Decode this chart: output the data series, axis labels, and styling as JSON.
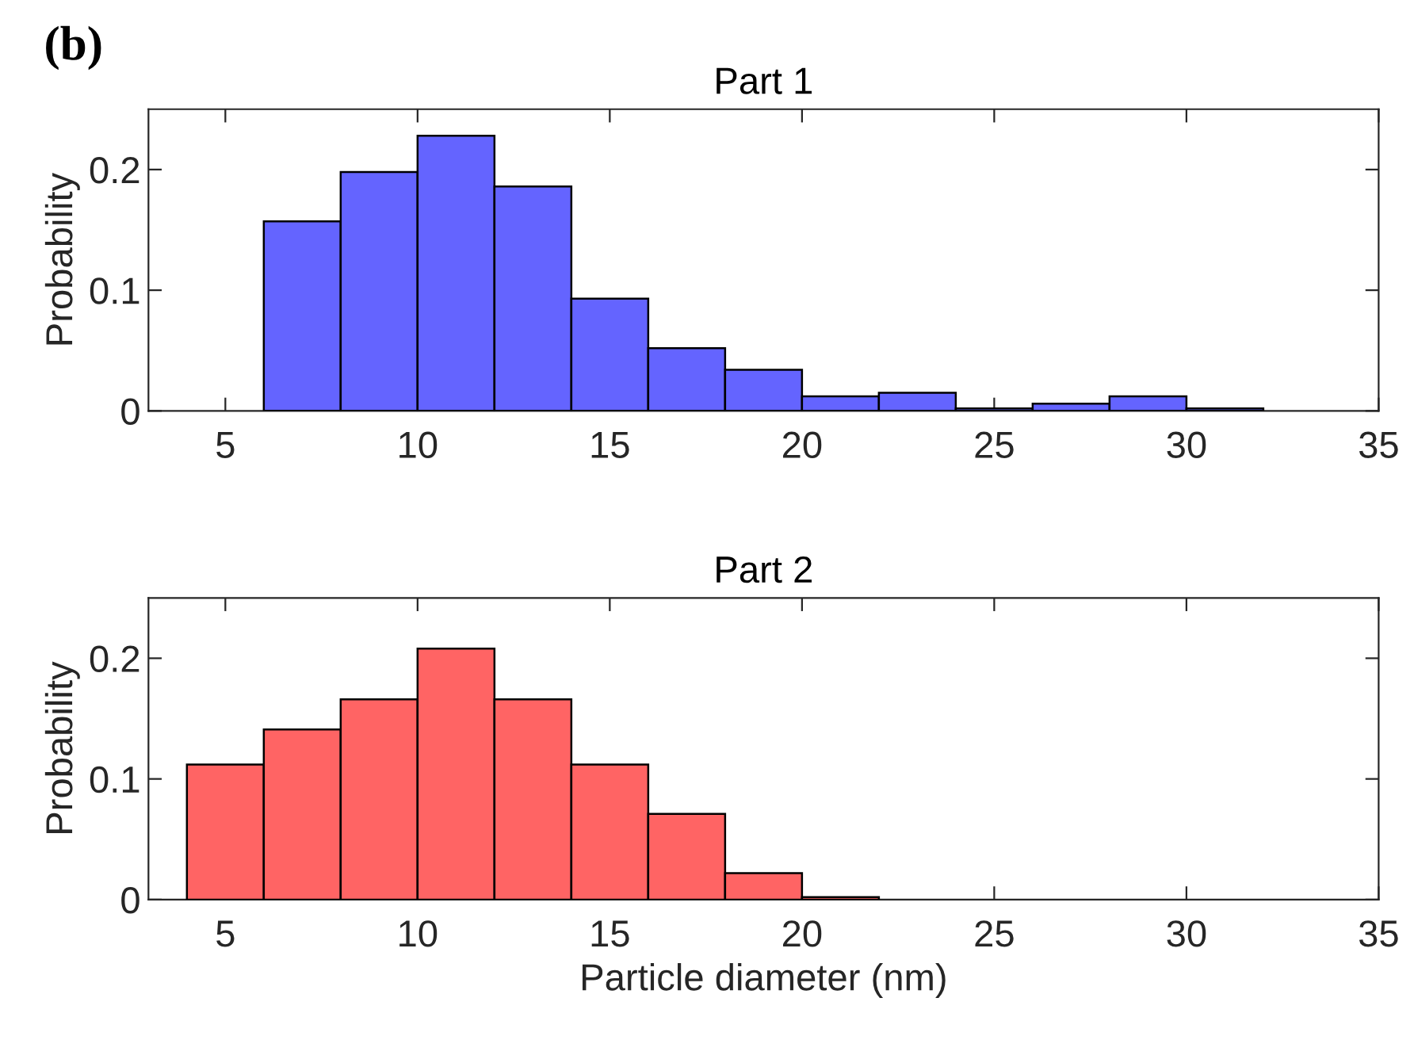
{
  "chart_data": [
    {
      "type": "histogram",
      "title": "Part 1",
      "ylabel": "Probability",
      "annotations": [
        "(b)"
      ],
      "color": "#6464ff",
      "bins": [
        6,
        8,
        10,
        12,
        14,
        16,
        18,
        20,
        22,
        24,
        26,
        28,
        30,
        32
      ],
      "values": [
        0.157,
        0.198,
        0.228,
        0.186,
        0.093,
        0.052,
        0.034,
        0.012,
        0.015,
        0.002,
        0.006,
        0.012,
        0.002
      ],
      "xlim": [
        3,
        35
      ],
      "xticks": [
        5,
        10,
        15,
        20,
        25,
        30,
        35
      ],
      "ylim": [
        0,
        0.25
      ],
      "yticks": [
        0,
        0.1,
        0.2
      ],
      "grid": false
    },
    {
      "type": "histogram",
      "title": "Part 2",
      "xlabel": "Particle diameter (nm)",
      "ylabel": "Probability",
      "color": "#ff6464",
      "bins": [
        4,
        6,
        8,
        10,
        12,
        14,
        16,
        18,
        20,
        22
      ],
      "values": [
        0.112,
        0.141,
        0.166,
        0.208,
        0.166,
        0.112,
        0.071,
        0.022,
        0.002
      ],
      "xlim": [
        3,
        35
      ],
      "xticks": [
        5,
        10,
        15,
        20,
        25,
        30,
        35
      ],
      "ylim": [
        0,
        0.25
      ],
      "yticks": [
        0,
        0.1,
        0.2
      ],
      "grid": false
    }
  ]
}
